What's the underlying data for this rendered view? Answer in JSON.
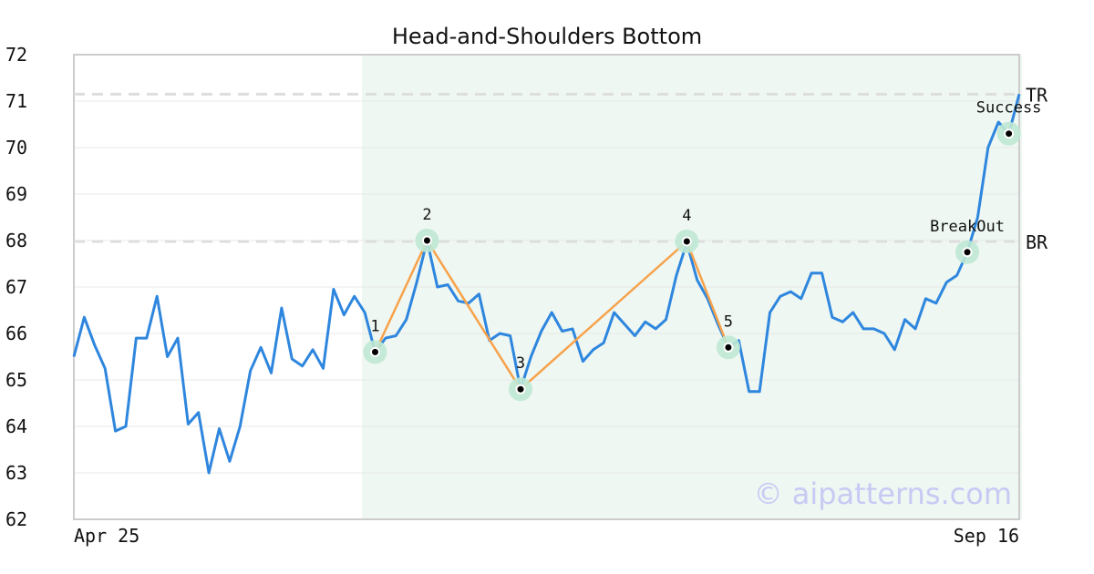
{
  "chart_data": {
    "type": "line",
    "title": "Head-and-Shoulders Bottom",
    "ylim": [
      62,
      72
    ],
    "yticks": [
      62,
      63,
      64,
      65,
      66,
      67,
      68,
      69,
      70,
      71,
      72
    ],
    "x_start_label": "Apr 25",
    "x_end_label": "Sep 16",
    "grid": true,
    "series": [
      {
        "values": [
          65.5,
          66.35,
          65.75,
          65.25,
          63.9,
          64.0,
          65.9,
          65.9,
          66.8,
          65.5,
          65.9,
          64.05,
          64.3,
          63.0,
          63.95,
          63.25,
          64.0,
          65.2,
          65.7,
          65.15,
          66.55,
          65.45,
          65.3,
          65.65,
          65.25,
          66.95,
          66.4,
          66.8,
          66.45,
          65.6,
          65.9,
          65.95,
          66.3,
          67.1,
          68.0,
          67.0,
          67.05,
          66.7,
          66.65,
          66.85,
          65.85,
          66.0,
          65.95,
          64.8,
          65.5,
          66.05,
          66.45,
          66.05,
          66.1,
          65.4,
          65.65,
          65.8,
          66.45,
          66.2,
          65.95,
          66.25,
          66.1,
          66.3,
          67.25,
          67.95,
          67.15,
          66.75,
          66.2,
          65.7,
          65.85,
          64.75,
          64.75,
          66.45,
          66.8,
          66.9,
          66.75,
          67.3,
          67.3,
          66.35,
          66.25,
          66.45,
          66.1,
          66.1,
          66.0,
          65.65,
          66.3,
          66.1,
          66.75,
          66.65,
          67.1,
          67.25,
          67.75,
          68.5,
          70.0,
          70.55,
          70.3,
          71.15
        ]
      }
    ],
    "highlight_range": {
      "start_index": 28,
      "end_index": 91
    },
    "pattern_points": [
      {
        "label": "1",
        "index": 29,
        "value": 65.6
      },
      {
        "label": "2",
        "index": 34,
        "value": 68.0
      },
      {
        "label": "3",
        "index": 43,
        "value": 64.8
      },
      {
        "label": "4",
        "index": 59,
        "value": 67.98
      },
      {
        "label": "5",
        "index": 63,
        "value": 65.7
      }
    ],
    "events": [
      {
        "label": "BreakOut",
        "index": 86,
        "value": 67.75
      },
      {
        "label": "Success",
        "index": 90,
        "value": 70.3
      }
    ],
    "reference_lines": [
      {
        "label": "TR",
        "value": 71.15
      },
      {
        "label": "BR",
        "value": 67.98
      }
    ],
    "colors": {
      "line": "#2e86de",
      "pattern": "#f7a24a",
      "highlight": "#eef7f2",
      "marker_halo": "#bfe8d4",
      "reference": "#dddddd",
      "grid": "#e8e8e8",
      "frame": "#cccccc"
    }
  },
  "watermark": "© aipatterns.com"
}
